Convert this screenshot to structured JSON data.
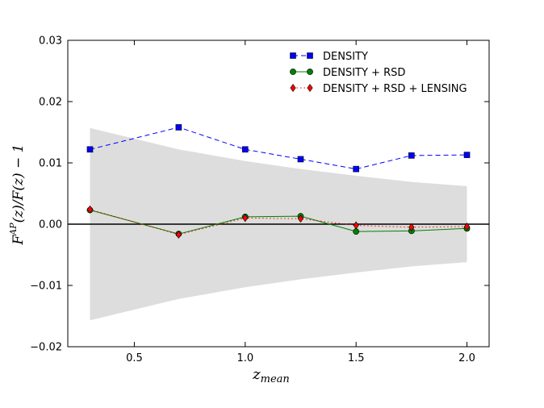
{
  "chart_data": {
    "type": "line",
    "title": "",
    "xlabel": "z_mean",
    "ylabel": "F^{AP}(z)/F(z) − 1",
    "xlim": [
      0.2,
      2.1
    ],
    "ylim": [
      -0.02,
      0.03
    ],
    "xticks": [
      0.5,
      1.0,
      1.5,
      2.0
    ],
    "xtick_labels": [
      "0.5",
      "1.0",
      "1.5",
      "2.0"
    ],
    "yticks": [
      -0.02,
      -0.01,
      0.0,
      0.01,
      0.02,
      0.03
    ],
    "ytick_labels": [
      "−0.02",
      "−0.01",
      "0.00",
      "0.01",
      "0.02",
      "0.03"
    ],
    "legend_location": "top-right",
    "x": [
      0.3,
      0.7,
      1.0,
      1.25,
      1.5,
      1.75,
      2.0
    ],
    "zero_line": 0.0,
    "band": {
      "name": "uncertainty band",
      "color": "#dddddd",
      "upper": [
        0.0157,
        0.0122,
        0.0103,
        0.009,
        0.0079,
        0.0069,
        0.0062
      ],
      "lower": [
        -0.0157,
        -0.0122,
        -0.0103,
        -0.009,
        -0.0079,
        -0.0069,
        -0.0062
      ]
    },
    "series": [
      {
        "name": "DENSITY",
        "color": "#0000ff",
        "marker": "square",
        "linestyle": "dashed",
        "values": [
          0.0122,
          0.0158,
          0.0122,
          0.0106,
          0.009,
          0.0112,
          0.0113
        ]
      },
      {
        "name": "DENSITY + RSD",
        "color": "#008000",
        "marker": "circle",
        "linestyle": "solid",
        "values": [
          0.0023,
          -0.0016,
          0.0012,
          0.0013,
          -0.0012,
          -0.0011,
          -0.0007
        ]
      },
      {
        "name": "DENSITY + RSD + LENSING",
        "color": "#ff0000",
        "marker": "diamond",
        "linestyle": "dotted",
        "values": [
          0.0024,
          -0.0017,
          0.001,
          0.0009,
          -0.0002,
          -0.0005,
          -0.0004
        ]
      }
    ]
  }
}
